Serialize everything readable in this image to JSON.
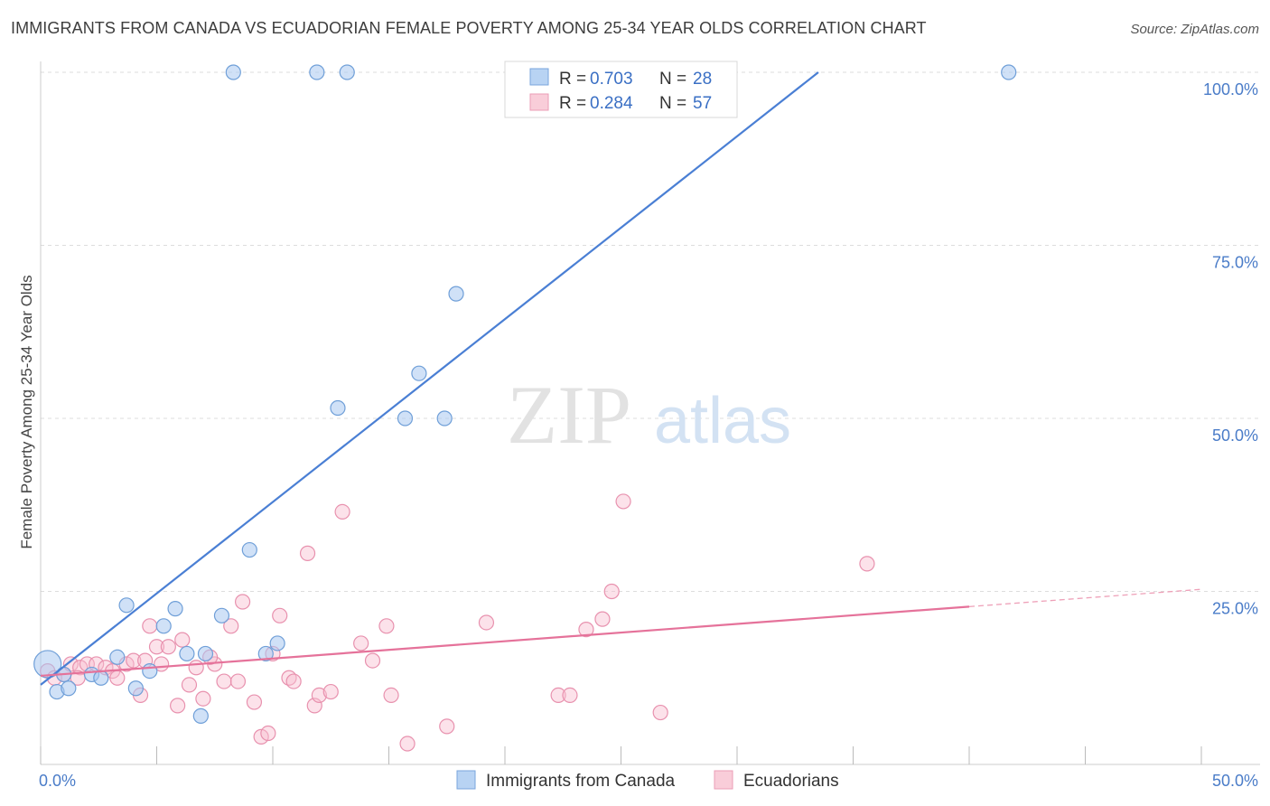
{
  "title": "IMMIGRANTS FROM CANADA VS ECUADORIAN FEMALE POVERTY AMONG 25-34 YEAR OLDS CORRELATION CHART",
  "source": "Source: ZipAtlas.com",
  "watermark": {
    "zip": "ZIP",
    "atlas": "atlas"
  },
  "legend": {
    "r_label": "R =",
    "n_label": "N =",
    "rows": [
      {
        "r": "0.703",
        "n": "28",
        "color": "#a9c8f0",
        "stroke": "#6f9fd8"
      },
      {
        "r": "0.284",
        "n": "57",
        "color": "#f7c0d0",
        "stroke": "#e891ae"
      }
    ]
  },
  "bottom_legend": [
    {
      "label": "Immigrants from Canada",
      "color": "#b8d3f3",
      "stroke": "#7aa6dc"
    },
    {
      "label": "Ecuadorians",
      "color": "#f9cdd9",
      "stroke": "#eb9db6"
    }
  ],
  "chart_data": {
    "type": "scatter",
    "title": "IMMIGRANTS FROM CANADA VS ECUADORIAN FEMALE POVERTY AMONG 25-34 YEAR OLDS CORRELATION CHART",
    "xlabel": "",
    "ylabel": "Female Poverty Among 25-34 Year Olds",
    "xlim": [
      0,
      50
    ],
    "ylim": [
      0,
      100
    ],
    "x_tick_labels": [
      "0.0%",
      "50.0%"
    ],
    "y_tick_labels": [
      "25.0%",
      "50.0%",
      "75.0%",
      "100.0%"
    ],
    "y_ticks": [
      25,
      50,
      75,
      100
    ],
    "grid": true,
    "colors": {
      "canada": "#4a7fd4",
      "ecuador": "#e5729a"
    },
    "series": [
      {
        "name": "Immigrants from Canada",
        "points": [
          [
            0.3,
            14.5
          ],
          [
            0.7,
            10.5
          ],
          [
            1.2,
            11.0
          ],
          [
            2.2,
            13.0
          ],
          [
            2.6,
            12.5
          ],
          [
            3.3,
            15.5
          ],
          [
            3.7,
            23.0
          ],
          [
            4.1,
            11.0
          ],
          [
            4.7,
            13.5
          ],
          [
            5.3,
            20.0
          ],
          [
            5.8,
            22.5
          ],
          [
            6.3,
            16.0
          ],
          [
            6.9,
            7.0
          ],
          [
            7.1,
            16.0
          ],
          [
            7.8,
            21.5
          ],
          [
            9.0,
            31.0
          ],
          [
            9.7,
            16.0
          ],
          [
            10.2,
            17.5
          ],
          [
            8.3,
            100.0
          ],
          [
            11.9,
            100.0
          ],
          [
            13.2,
            100.0
          ],
          [
            12.8,
            51.5
          ],
          [
            15.7,
            50.0
          ],
          [
            16.3,
            56.5
          ],
          [
            17.4,
            50.0
          ],
          [
            17.9,
            68.0
          ],
          [
            41.7,
            100.0
          ],
          [
            1.0,
            13.0
          ]
        ],
        "trend": [
          [
            0.0,
            11.5
          ],
          [
            33.5,
            100.0
          ]
        ]
      },
      {
        "name": "Ecuadorians",
        "points": [
          [
            0.3,
            13.5
          ],
          [
            0.6,
            12.5
          ],
          [
            1.0,
            13.0
          ],
          [
            1.3,
            14.5
          ],
          [
            1.7,
            14.0
          ],
          [
            2.0,
            14.5
          ],
          [
            2.4,
            14.5
          ],
          [
            2.8,
            14.0
          ],
          [
            3.1,
            13.5
          ],
          [
            3.3,
            12.5
          ],
          [
            3.7,
            14.5
          ],
          [
            4.0,
            15.0
          ],
          [
            4.3,
            10.0
          ],
          [
            4.7,
            20.0
          ],
          [
            5.0,
            17.0
          ],
          [
            5.2,
            14.5
          ],
          [
            5.5,
            17.0
          ],
          [
            5.9,
            8.5
          ],
          [
            6.1,
            18.0
          ],
          [
            6.4,
            11.5
          ],
          [
            6.7,
            14.0
          ],
          [
            7.0,
            9.5
          ],
          [
            7.5,
            14.5
          ],
          [
            7.9,
            12.0
          ],
          [
            8.2,
            20.0
          ],
          [
            8.5,
            12.0
          ],
          [
            8.7,
            23.5
          ],
          [
            9.2,
            9.0
          ],
          [
            9.5,
            4.0
          ],
          [
            9.8,
            4.5
          ],
          [
            10.0,
            16.0
          ],
          [
            10.3,
            21.5
          ],
          [
            10.7,
            12.5
          ],
          [
            10.9,
            12.0
          ],
          [
            11.5,
            30.5
          ],
          [
            11.8,
            8.5
          ],
          [
            12.0,
            10.0
          ],
          [
            12.5,
            10.5
          ],
          [
            13.0,
            36.5
          ],
          [
            13.8,
            17.5
          ],
          [
            14.3,
            15.0
          ],
          [
            14.9,
            20.0
          ],
          [
            15.1,
            10.0
          ],
          [
            15.8,
            3.0
          ],
          [
            17.5,
            5.5
          ],
          [
            19.2,
            20.5
          ],
          [
            22.3,
            10.0
          ],
          [
            22.8,
            10.0
          ],
          [
            23.5,
            19.5
          ],
          [
            24.2,
            21.0
          ],
          [
            24.6,
            25.0
          ],
          [
            25.1,
            38.0
          ],
          [
            26.7,
            7.5
          ],
          [
            35.6,
            29.0
          ],
          [
            1.6,
            12.5
          ],
          [
            4.5,
            15.0
          ],
          [
            7.3,
            15.5
          ]
        ],
        "trend": [
          [
            0.0,
            12.8
          ],
          [
            40.0,
            22.8
          ]
        ],
        "trend_dashed": [
          [
            40.0,
            22.8
          ],
          [
            50.0,
            25.3
          ]
        ]
      }
    ]
  }
}
